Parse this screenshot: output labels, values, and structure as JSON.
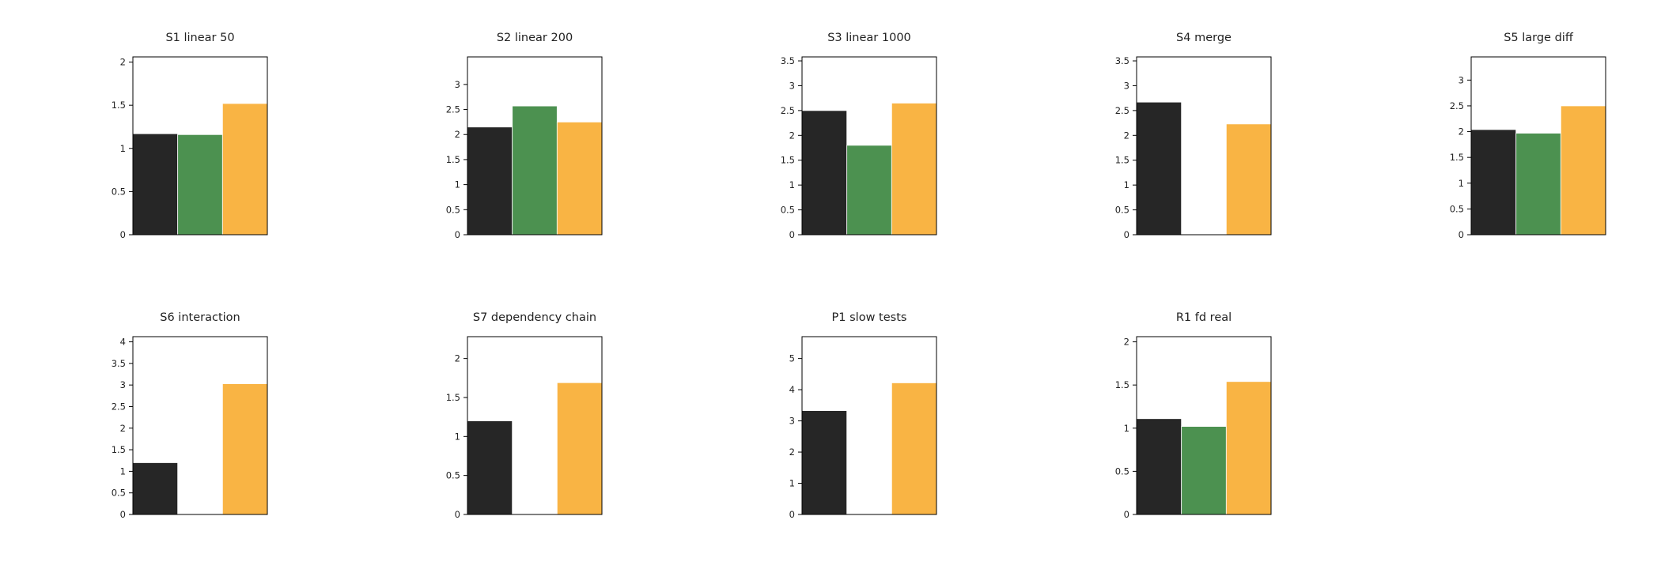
{
  "colors": {
    "series": [
      "#262626",
      "#4c9150",
      "#f9b444"
    ],
    "bar_edge": "#ffffff"
  },
  "chart_data": [
    {
      "type": "bar",
      "title": "S1 linear 50",
      "xlabel": "",
      "ylabel": "",
      "grid": false,
      "series": [
        {
          "values": [
            1.17
          ]
        },
        {
          "values": [
            1.16
          ]
        },
        {
          "values": [
            1.52
          ]
        }
      ],
      "ylim": [
        0,
        2.06
      ],
      "yticks": [
        "0",
        "0.5",
        "1",
        "1.5",
        "2"
      ]
    },
    {
      "type": "bar",
      "title": "S2 linear 200",
      "xlabel": "",
      "ylabel": "",
      "grid": false,
      "series": [
        {
          "values": [
            2.15
          ]
        },
        {
          "values": [
            2.57
          ]
        },
        {
          "values": [
            2.25
          ]
        }
      ],
      "ylim": [
        0,
        3.55
      ],
      "yticks": [
        "0",
        "0.5",
        "1",
        "1.5",
        "2",
        "2.5",
        "3"
      ]
    },
    {
      "type": "bar",
      "title": "S3 linear 1000",
      "xlabel": "",
      "ylabel": "",
      "grid": false,
      "series": [
        {
          "values": [
            2.5
          ]
        },
        {
          "values": [
            1.8
          ]
        },
        {
          "values": [
            2.65
          ]
        }
      ],
      "ylim": [
        0,
        3.58
      ],
      "yticks": [
        "0",
        "0.5",
        "1",
        "1.5",
        "2",
        "2.5",
        "3",
        "3.5"
      ]
    },
    {
      "type": "bar",
      "title": "S4 merge",
      "xlabel": "",
      "ylabel": "",
      "grid": false,
      "series": [
        {
          "values": [
            2.67
          ]
        },
        {
          "values": [
            0
          ]
        },
        {
          "values": [
            2.23
          ]
        }
      ],
      "ylim": [
        0,
        3.58
      ],
      "yticks": [
        "0",
        "0.5",
        "1",
        "1.5",
        "2",
        "2.5",
        "3",
        "3.5"
      ]
    },
    {
      "type": "bar",
      "title": "S5 large diff",
      "xlabel": "",
      "ylabel": "",
      "grid": false,
      "series": [
        {
          "values": [
            2.04
          ]
        },
        {
          "values": [
            1.97
          ]
        },
        {
          "values": [
            2.5
          ]
        }
      ],
      "ylim": [
        0,
        3.45
      ],
      "yticks": [
        "0",
        "0.5",
        "1",
        "1.5",
        "2",
        "2.5",
        "3"
      ]
    },
    {
      "type": "bar",
      "title": "S6 interaction",
      "xlabel": "",
      "ylabel": "",
      "grid": false,
      "series": [
        {
          "values": [
            1.2
          ]
        },
        {
          "values": [
            0
          ]
        },
        {
          "values": [
            3.03
          ]
        }
      ],
      "ylim": [
        0,
        4.12
      ],
      "yticks": [
        "0",
        "0.5",
        "1",
        "1.5",
        "2",
        "2.5",
        "3",
        "3.5",
        "4"
      ]
    },
    {
      "type": "bar",
      "title": "S7 dependency chain",
      "xlabel": "",
      "ylabel": "",
      "grid": false,
      "series": [
        {
          "values": [
            1.2
          ]
        },
        {
          "values": [
            0
          ]
        },
        {
          "values": [
            1.69
          ]
        }
      ],
      "ylim": [
        0,
        2.28
      ],
      "yticks": [
        "0",
        "0.5",
        "1",
        "1.5",
        "2"
      ]
    },
    {
      "type": "bar",
      "title": "P1 slow tests",
      "xlabel": "",
      "ylabel": "",
      "grid": false,
      "series": [
        {
          "values": [
            3.33
          ]
        },
        {
          "values": [
            0
          ]
        },
        {
          "values": [
            4.22
          ]
        }
      ],
      "ylim": [
        0,
        5.7
      ],
      "yticks": [
        "0",
        "1",
        "2",
        "3",
        "4",
        "5"
      ]
    },
    {
      "type": "bar",
      "title": "R1 fd real",
      "xlabel": "",
      "ylabel": "",
      "grid": false,
      "series": [
        {
          "values": [
            1.11
          ]
        },
        {
          "values": [
            1.02
          ]
        },
        {
          "values": [
            1.54
          ]
        }
      ],
      "ylim": [
        0,
        2.06
      ],
      "yticks": [
        "0",
        "0.5",
        "1",
        "1.5",
        "2"
      ]
    }
  ]
}
